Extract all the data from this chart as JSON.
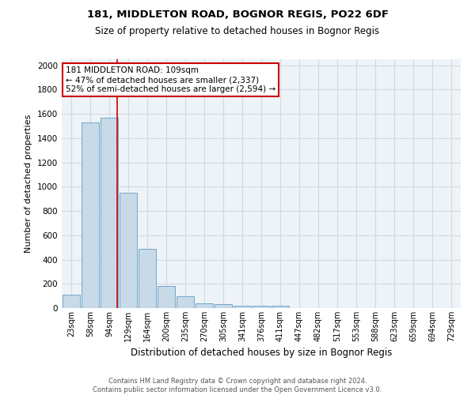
{
  "title1": "181, MIDDLETON ROAD, BOGNOR REGIS, PO22 6DF",
  "title2": "Size of property relative to detached houses in Bognor Regis",
  "xlabel": "Distribution of detached houses by size in Bognor Regis",
  "ylabel": "Number of detached properties",
  "footnote1": "Contains HM Land Registry data © Crown copyright and database right 2024.",
  "footnote2": "Contains public sector information licensed under the Open Government Licence v3.0.",
  "bar_labels": [
    "23sqm",
    "58sqm",
    "94sqm",
    "129sqm",
    "164sqm",
    "200sqm",
    "235sqm",
    "270sqm",
    "305sqm",
    "341sqm",
    "376sqm",
    "411sqm",
    "447sqm",
    "482sqm",
    "517sqm",
    "553sqm",
    "588sqm",
    "623sqm",
    "659sqm",
    "694sqm",
    "729sqm"
  ],
  "bar_values": [
    110,
    1530,
    1570,
    950,
    490,
    185,
    100,
    40,
    30,
    20,
    20,
    20,
    0,
    0,
    0,
    0,
    0,
    0,
    0,
    0,
    0
  ],
  "bar_color": "#c8d9e8",
  "bar_edge_color": "#6ea8cc",
  "grid_color": "#d0d8e0",
  "background_color": "#eef3f8",
  "red_line_x": 2.42,
  "annotation_line1": "181 MIDDLETON ROAD: 109sqm",
  "annotation_line2": "← 47% of detached houses are smaller (2,337)",
  "annotation_line3": "52% of semi-detached houses are larger (2,594) →",
  "annotation_box_color": "#ffffff",
  "annotation_box_edge_color": "#cc0000",
  "ylim": [
    0,
    2050
  ],
  "yticks": [
    0,
    200,
    400,
    600,
    800,
    1000,
    1200,
    1400,
    1600,
    1800,
    2000
  ]
}
